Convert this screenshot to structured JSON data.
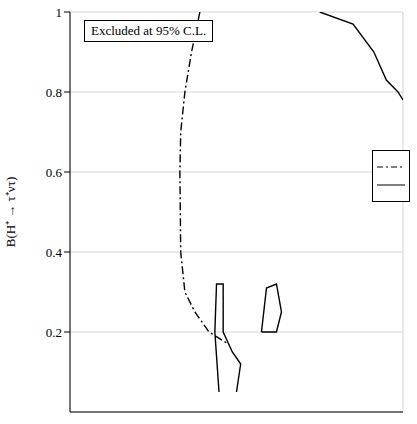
{
  "chart_data": {
    "type": "line",
    "y_label": "B(H⁺ → τ⁺ντ)",
    "annotation": "Excluded at 95% C.L.",
    "xlim": [
      40,
      80
    ],
    "xticks": [
      40,
      42.5,
      45,
      47.5,
      50,
      52.5,
      55,
      57.5,
      60,
      62.5,
      65,
      67.5,
      70,
      72.5,
      75,
      77.5,
      80
    ],
    "ylim": [
      0,
      1
    ],
    "yticks": [
      0.2,
      0.4,
      0.6,
      0.8,
      1
    ],
    "grid": true,
    "tick_labels": "y",
    "series": [
      {
        "color": "#000000",
        "line_style": "dashdot",
        "x": [
          55.6,
          54.6,
          53.8,
          53.3,
          53.2,
          53.3,
          53.8,
          55.0,
          56.7,
          59.0
        ],
        "values": [
          1,
          0.9,
          0.8,
          0.7,
          0.6,
          0.4,
          0.3,
          0.25,
          0.2,
          0.17
        ]
      },
      {
        "color": "#000000",
        "line_style": "solid",
        "x": [
          70.0,
          74.0,
          76.5,
          78.0,
          79.4,
          80.0
        ],
        "values": [
          1,
          0.97,
          0.9,
          0.83,
          0.8,
          0.78
        ]
      },
      {
        "color": "#000000",
        "line_style": "solid",
        "x": [
          57.9,
          57.4,
          57.6,
          58.4,
          58.4,
          59.5,
          60.5,
          60.0
        ],
        "values": [
          0.05,
          0.2,
          0.32,
          0.32,
          0.2,
          0.15,
          0.12,
          0.05
        ]
      },
      {
        "color": "#000000",
        "line_style": "solid",
        "x": [
          63.0,
          63.6,
          64.8,
          65.4,
          64.8,
          63.0
        ],
        "values": [
          0.2,
          0.31,
          0.32,
          0.25,
          0.2,
          0.2
        ]
      }
    ]
  }
}
